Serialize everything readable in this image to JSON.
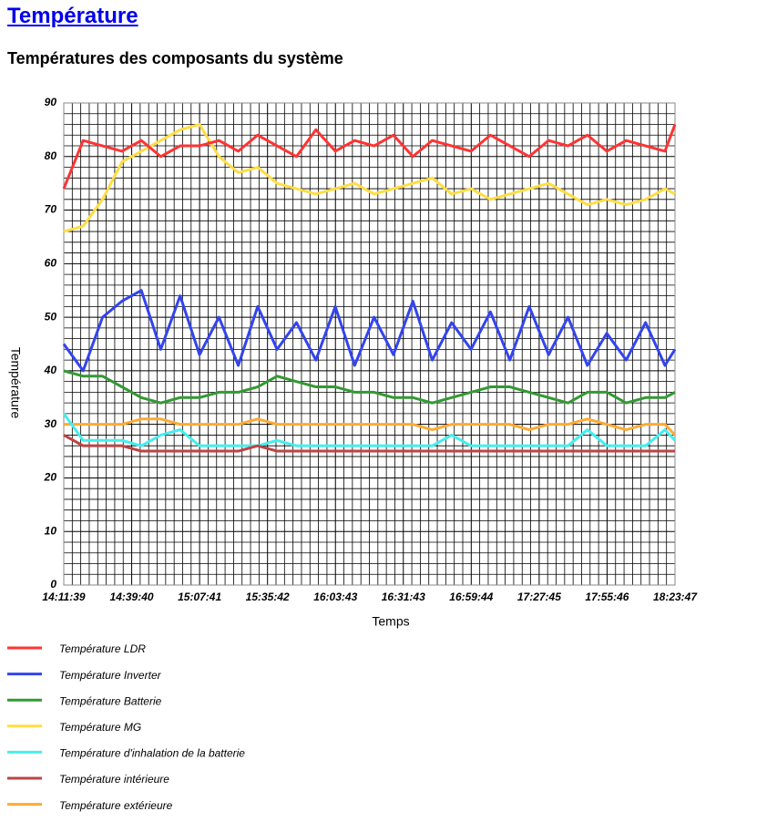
{
  "header": {
    "title": "Température",
    "subtitle": "Températures des composants du système"
  },
  "chart_data": {
    "type": "line",
    "ylabel": "Température",
    "xlabel": "Temps",
    "xlim": [
      "14:11:39",
      "18:23:47"
    ],
    "xticks": [
      "14:11:39",
      "14:39:40",
      "15:07:41",
      "15:35:42",
      "16:03:43",
      "16:31:43",
      "16:59:44",
      "17:27:45",
      "17:55:46",
      "18:23:47"
    ],
    "ylim": [
      0,
      90
    ],
    "yticks": [
      0,
      10,
      20,
      30,
      40,
      50,
      60,
      70,
      80,
      90
    ],
    "grid": true,
    "x": [
      "14:11:39",
      "14:19:39",
      "14:27:39",
      "14:35:39",
      "14:43:39",
      "14:51:39",
      "14:59:39",
      "15:07:39",
      "15:15:39",
      "15:23:39",
      "15:31:39",
      "15:39:39",
      "15:47:39",
      "15:55:39",
      "16:03:39",
      "16:11:39",
      "16:19:39",
      "16:27:39",
      "16:35:39",
      "16:43:39",
      "16:51:39",
      "16:59:39",
      "17:07:39",
      "17:15:39",
      "17:23:39",
      "17:31:39",
      "17:39:39",
      "17:47:39",
      "17:55:39",
      "18:03:39",
      "18:11:39",
      "18:19:39",
      "18:23:47"
    ],
    "series": [
      {
        "name": "Température LDR",
        "color": "#ff3333",
        "values": [
          74,
          83,
          82,
          81,
          83,
          80,
          82,
          82,
          83,
          81,
          84,
          82,
          80,
          85,
          81,
          83,
          82,
          84,
          80,
          83,
          82,
          81,
          84,
          82,
          80,
          83,
          82,
          84,
          81,
          83,
          82,
          81,
          86
        ]
      },
      {
        "name": "Température Inverter",
        "color": "#3344ee",
        "values": [
          45,
          40,
          50,
          53,
          55,
          44,
          54,
          43,
          50,
          41,
          52,
          44,
          49,
          42,
          52,
          41,
          50,
          43,
          53,
          42,
          49,
          44,
          51,
          42,
          52,
          43,
          50,
          41,
          47,
          42,
          49,
          41,
          44
        ]
      },
      {
        "name": "Température Batterie",
        "color": "#339933",
        "values": [
          40,
          39,
          39,
          37,
          35,
          34,
          35,
          35,
          36,
          36,
          37,
          39,
          38,
          37,
          37,
          36,
          36,
          35,
          35,
          34,
          35,
          36,
          37,
          37,
          36,
          35,
          34,
          36,
          36,
          34,
          35,
          35,
          36
        ]
      },
      {
        "name": "Température MG",
        "color": "#ffdd44",
        "values": [
          66,
          67,
          72,
          79,
          81,
          83,
          85,
          86,
          80,
          77,
          78,
          75,
          74,
          73,
          74,
          75,
          73,
          74,
          75,
          76,
          73,
          74,
          72,
          73,
          74,
          75,
          73,
          71,
          72,
          71,
          72,
          74,
          73
        ]
      },
      {
        "name": "Température d'inhalation de la batterie",
        "color": "#44eeee",
        "values": [
          32,
          27,
          27,
          27,
          26,
          28,
          29,
          26,
          26,
          26,
          26,
          27,
          26,
          26,
          26,
          26,
          26,
          26,
          26,
          26,
          28,
          26,
          26,
          26,
          26,
          26,
          26,
          29,
          26,
          26,
          26,
          29,
          27
        ]
      },
      {
        "name": "Température intérieure",
        "color": "#bb4444",
        "values": [
          28,
          26,
          26,
          26,
          25,
          25,
          25,
          25,
          25,
          25,
          26,
          25,
          25,
          25,
          25,
          25,
          25,
          25,
          25,
          25,
          25,
          25,
          25,
          25,
          25,
          25,
          25,
          25,
          25,
          25,
          25,
          25,
          25
        ]
      },
      {
        "name": "Température extérieure",
        "color": "#ffaa33",
        "values": [
          30,
          30,
          30,
          30,
          31,
          31,
          30,
          30,
          30,
          30,
          31,
          30,
          30,
          30,
          30,
          30,
          30,
          30,
          30,
          29,
          30,
          30,
          30,
          30,
          29,
          30,
          30,
          31,
          30,
          29,
          30,
          30,
          28
        ]
      }
    ]
  }
}
